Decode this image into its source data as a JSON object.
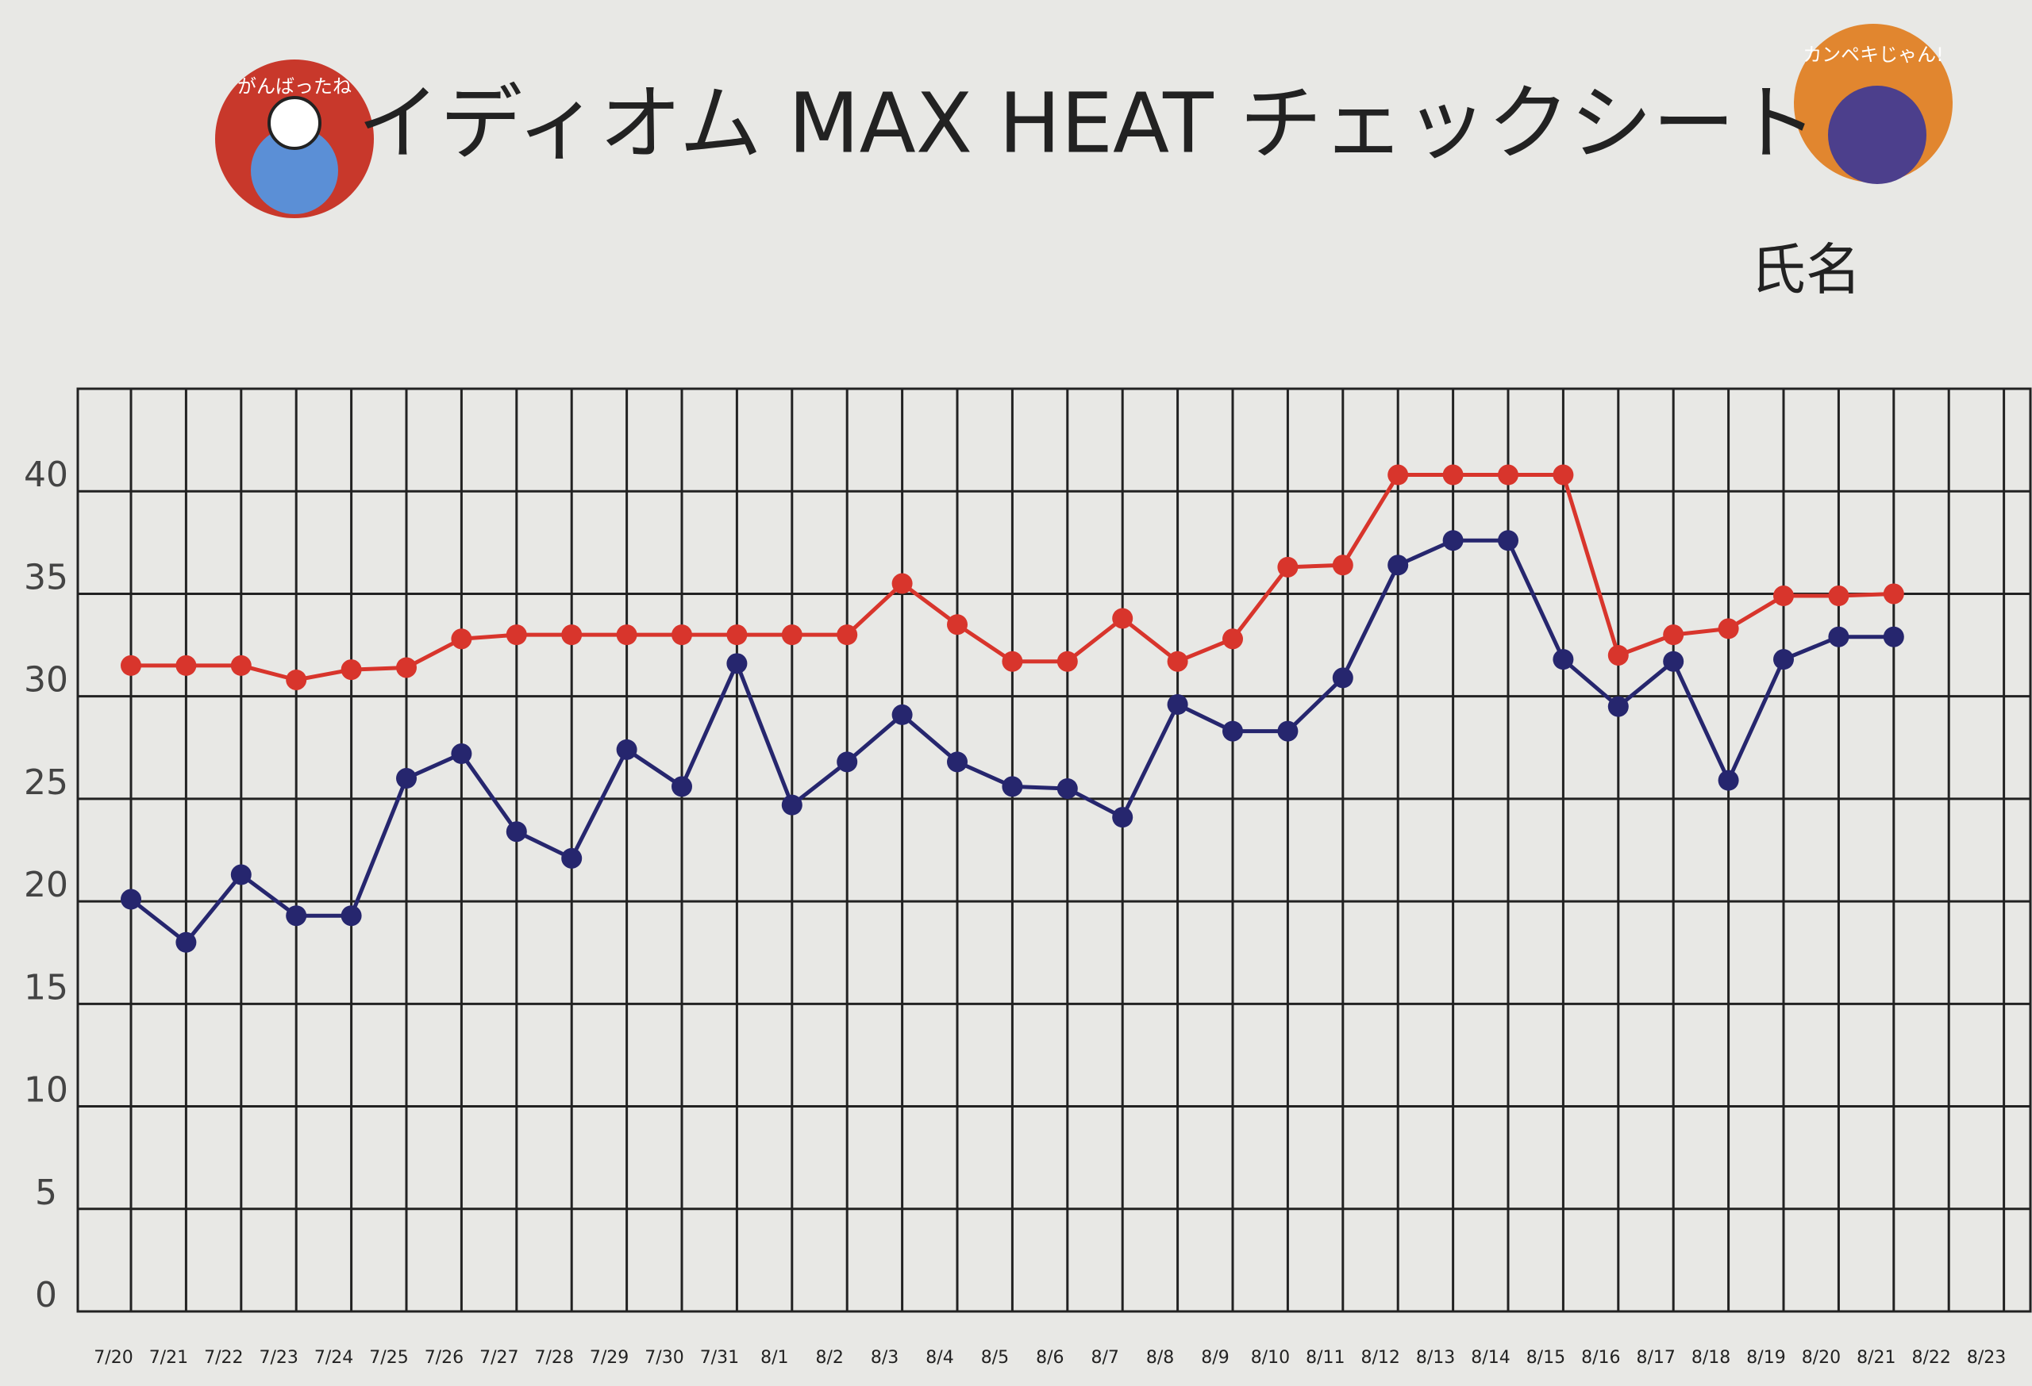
{
  "chart_data": {
    "type": "line",
    "title": "イディオム MAX HEAT チェックシート",
    "name_label": "氏名",
    "badges": [
      "がんばったね",
      "カンペキじゃん!"
    ],
    "categories": [
      "7/20",
      "7/21",
      "7/22",
      "7/23",
      "7/24",
      "7/25",
      "7/26",
      "7/27",
      "7/28",
      "7/29",
      "7/30",
      "7/31",
      "8/1",
      "8/2",
      "8/3",
      "8/4",
      "8/5",
      "8/6",
      "8/7",
      "8/8",
      "8/9",
      "8/10",
      "8/11",
      "8/12",
      "8/13",
      "8/14",
      "8/15",
      "8/16",
      "8/17",
      "8/18",
      "8/19",
      "8/20",
      "8/21",
      "8/22",
      "8/23"
    ],
    "series": [
      {
        "color": "#d8352c",
        "values": [
          31.5,
          31.5,
          31.5,
          30.8,
          31.3,
          31.4,
          32.8,
          33,
          33,
          33,
          33,
          33,
          33,
          33,
          35.5,
          33.5,
          31.7,
          31.7,
          33.8,
          31.7,
          32.8,
          36.3,
          36.4,
          40.8,
          40.8,
          40.8,
          40.8,
          32,
          33,
          33.3,
          34.9,
          34.9,
          35,
          null,
          null
        ]
      },
      {
        "color": "#26266e",
        "values": [
          20.1,
          18,
          21.3,
          19.3,
          19.3,
          26,
          27.2,
          23.4,
          22.1,
          27.4,
          25.6,
          31.6,
          24.7,
          26.8,
          29.1,
          26.8,
          25.6,
          25.5,
          24.1,
          29.6,
          28.3,
          28.3,
          30.9,
          36.4,
          37.6,
          37.6,
          31.8,
          29.5,
          31.7,
          25.9,
          31.8,
          32.9,
          32.9,
          null,
          null
        ]
      }
    ],
    "ylim": [
      0,
      45
    ],
    "yticks": [
      0,
      5,
      10,
      15,
      20,
      25,
      30,
      35,
      40
    ],
    "grid": true
  }
}
